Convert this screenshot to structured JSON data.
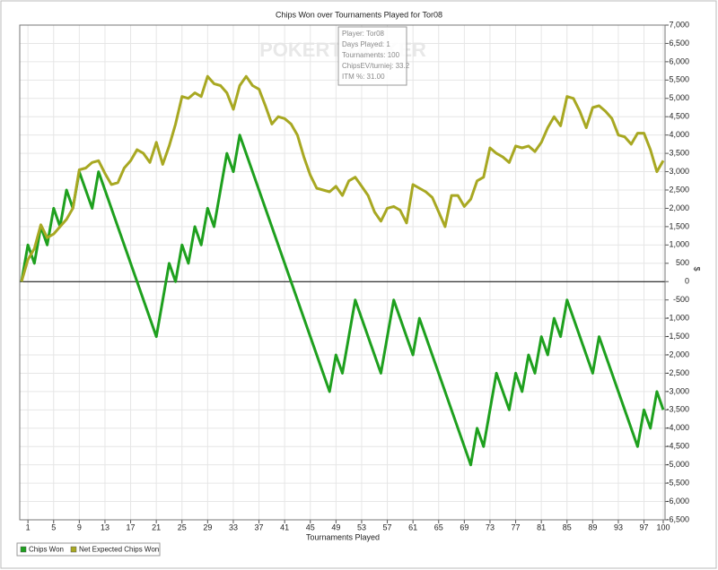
{
  "chart_data": {
    "type": "line",
    "title": "Chips Won over Tournaments Played for Tor08",
    "x_label": "Tournaments Played",
    "y_label": "$",
    "watermark": "POKERTRACKER",
    "tooltip": [
      "Player: Tor08",
      "Days Played: 1",
      "Tournaments: 100",
      "ChipsEV/turniej: 33.2",
      "ITM %: 31.00"
    ],
    "xlim": [
      0,
      100
    ],
    "ylim": [
      -6500,
      7000
    ],
    "grid": true,
    "legend": "bottom-left",
    "xticks": [
      1,
      5,
      9,
      13,
      17,
      21,
      25,
      29,
      33,
      37,
      41,
      45,
      49,
      53,
      57,
      61,
      65,
      69,
      73,
      77,
      81,
      85,
      89,
      93,
      97,
      100
    ],
    "yticks": [
      {
        "value": 7000,
        "label": "7,000"
      },
      {
        "value": 6500,
        "label": "6,500"
      },
      {
        "value": 6000,
        "label": "6,000"
      },
      {
        "value": 5500,
        "label": "5,500"
      },
      {
        "value": 5000,
        "label": "5,000"
      },
      {
        "value": 4500,
        "label": "4,500"
      },
      {
        "value": 4000,
        "label": "4,000"
      },
      {
        "value": 3500,
        "label": "3,500"
      },
      {
        "value": 3000,
        "label": "3,000"
      },
      {
        "value": 2500,
        "label": "2,500"
      },
      {
        "value": 2000,
        "label": "2,000"
      },
      {
        "value": 1500,
        "label": "1,500"
      },
      {
        "value": 1000,
        "label": "1,000"
      },
      500,
      0,
      -500,
      {
        "value": -1000,
        "label": "-1,000"
      },
      {
        "value": -1500,
        "label": "-1,500"
      },
      {
        "value": -2000,
        "label": "-2,000"
      },
      {
        "value": -2500,
        "label": "-2,500"
      },
      {
        "value": -3000,
        "label": "-3,000"
      },
      {
        "value": -3500,
        "label": "-3,500"
      },
      {
        "value": -4000,
        "label": "-4,000"
      },
      {
        "value": -4500,
        "label": "-4,500"
      },
      {
        "value": -5000,
        "label": "-5,000"
      },
      {
        "value": -5500,
        "label": "-5,500"
      },
      {
        "value": -6000,
        "label": "-6,000"
      },
      {
        "value": -6500,
        "label": "-6,500"
      }
    ],
    "series": [
      {
        "name": "Chips Won",
        "color": "#1ea01e",
        "x": [
          0,
          1,
          2,
          3,
          4,
          5,
          6,
          7,
          8,
          9,
          11,
          12,
          21,
          23,
          24,
          25,
          26,
          27,
          28,
          29,
          30,
          32,
          33,
          34,
          48,
          49,
          50,
          52,
          56,
          58,
          61,
          62,
          70,
          71,
          72,
          74,
          76,
          77,
          78,
          79,
          80,
          81,
          82,
          83,
          84,
          85,
          89,
          90,
          96,
          97,
          98,
          99,
          100
        ],
        "values": [
          0,
          1000,
          500,
          1500,
          1000,
          2000,
          1500,
          2500,
          2000,
          3000,
          2000,
          3000,
          -1500,
          500,
          0,
          1000,
          500,
          1500,
          1000,
          2000,
          1500,
          3500,
          3000,
          4000,
          -3000,
          -2000,
          -2500,
          -500,
          -2500,
          -500,
          -2000,
          -1000,
          -5000,
          -4000,
          -4500,
          -2500,
          -3500,
          -2500,
          -3000,
          -2000,
          -2500,
          -1500,
          -2000,
          -1000,
          -1500,
          -500,
          -2500,
          -1500,
          -4500,
          -3500,
          -4000,
          -3000,
          -3500
        ]
      },
      {
        "name": "Net Expected Chips Won",
        "color": "#a8a822",
        "x": [
          0,
          1,
          2,
          3,
          4,
          5,
          6,
          7,
          8,
          9,
          10,
          11,
          12,
          13,
          14,
          15,
          16,
          17,
          18,
          19,
          20,
          21,
          22,
          23,
          24,
          25,
          26,
          27,
          28,
          29,
          30,
          31,
          32,
          33,
          34,
          35,
          36,
          37,
          38,
          39,
          40,
          41,
          42,
          43,
          44,
          45,
          46,
          47,
          48,
          49,
          50,
          51,
          52,
          53,
          54,
          55,
          56,
          57,
          58,
          59,
          60,
          61,
          62,
          63,
          64,
          65,
          66,
          67,
          68,
          69,
          70,
          71,
          72,
          73,
          74,
          75,
          76,
          77,
          78,
          79,
          80,
          81,
          82,
          83,
          84,
          85,
          86,
          87,
          88,
          89,
          90,
          91,
          92,
          93,
          94,
          95,
          96,
          97,
          98,
          99,
          100
        ],
        "values": [
          0,
          600,
          900,
          1550,
          1200,
          1300,
          1500,
          1700,
          2000,
          3050,
          3100,
          3250,
          3300,
          2950,
          2650,
          2700,
          3100,
          3300,
          3600,
          3500,
          3250,
          3800,
          3200,
          3700,
          4300,
          5050,
          5000,
          5150,
          5050,
          5600,
          5400,
          5350,
          5150,
          4700,
          5350,
          5600,
          5350,
          5250,
          4800,
          4300,
          4500,
          4450,
          4300,
          4000,
          3400,
          2900,
          2550,
          2500,
          2450,
          2600,
          2350,
          2750,
          2850,
          2600,
          2350,
          1900,
          1650,
          2000,
          2050,
          1950,
          1600,
          2650,
          2550,
          2450,
          2300,
          1900,
          1500,
          2350,
          2350,
          2050,
          2250,
          2750,
          2850,
          3650,
          3500,
          3400,
          3250,
          3700,
          3650,
          3700,
          3550,
          3800,
          4200,
          4500,
          4250,
          5050,
          5000,
          4650,
          4200,
          4750,
          4800,
          4650,
          4450,
          4000,
          3950,
          3750,
          4050,
          4050,
          3600,
          3000,
          3300
        ]
      }
    ]
  }
}
